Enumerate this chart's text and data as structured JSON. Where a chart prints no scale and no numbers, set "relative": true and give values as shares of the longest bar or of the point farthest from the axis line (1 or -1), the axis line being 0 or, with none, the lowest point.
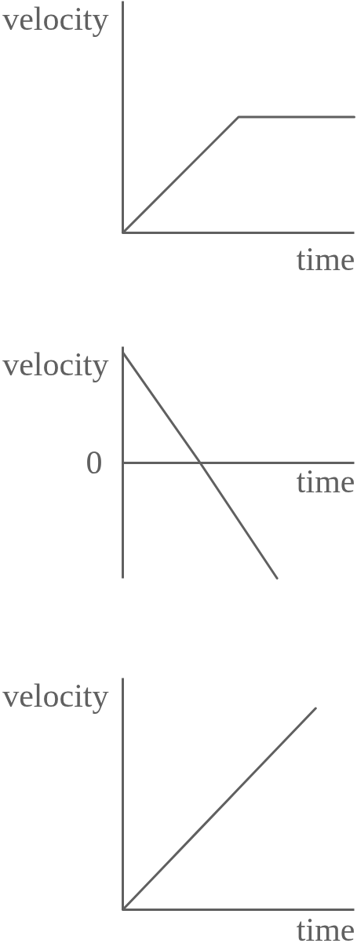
{
  "chart_data": [
    {
      "type": "line",
      "xlabel": "time",
      "ylabel": "velocity",
      "categories": [
        null,
        null,
        null
      ],
      "values": [
        0,
        1,
        1
      ],
      "color": "#606060",
      "relative": true
    },
    {
      "type": "line",
      "xlabel": "time",
      "ylabel": "velocity",
      "categories": [
        null,
        null,
        null,
        null
      ],
      "values": [
        0.95,
        0,
        -1,
        null
      ],
      "color": "#606060",
      "relative": true,
      "annotations": [
        "0"
      ]
    },
    {
      "type": "line",
      "xlabel": "time",
      "ylabel": "velocity",
      "categories": [
        null,
        null,
        null,
        null,
        null,
        null,
        null
      ],
      "values": [
        0,
        0.2,
        0.4,
        0.6,
        0.8,
        1,
        null
      ],
      "color": "#606060",
      "relative": true
    }
  ]
}
